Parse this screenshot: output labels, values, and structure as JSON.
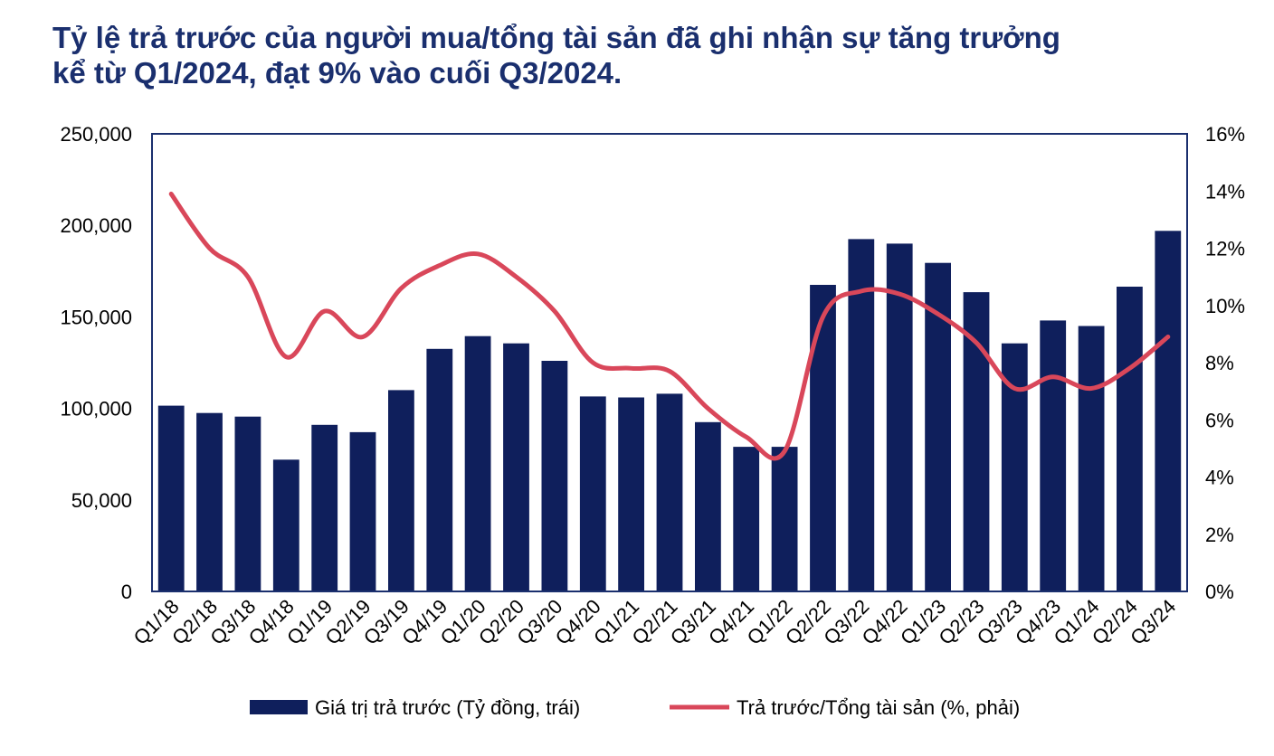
{
  "title_line1": "Tỷ lệ trả trước của người mua/tổng tài sản đã ghi nhận sự tăng trưởng",
  "title_line2": "kể từ Q1/2024, đạt 9% vào cuối Q3/2024.",
  "colors": {
    "bar": "#0f1f5c",
    "line": "#d9475a",
    "title": "#1a2f6e",
    "frame": "#1a2f6e"
  },
  "chart_data": {
    "type": "bar",
    "categories": [
      "Q1/18",
      "Q2/18",
      "Q3/18",
      "Q4/18",
      "Q1/19",
      "Q2/19",
      "Q3/19",
      "Q4/19",
      "Q1/20",
      "Q2/20",
      "Q3/20",
      "Q4/20",
      "Q1/21",
      "Q2/21",
      "Q3/21",
      "Q4/21",
      "Q1/22",
      "Q2/22",
      "Q3/22",
      "Q4/22",
      "Q1/23",
      "Q2/23",
      "Q3/23",
      "Q4/23",
      "Q1/24",
      "Q2/24",
      "Q3/24"
    ],
    "series": [
      {
        "name": "Giá trị trả trước (Tỷ đồng, trái)",
        "type": "bar",
        "axis": "left",
        "values": [
          101500,
          97500,
          95500,
          72000,
          91000,
          87000,
          110000,
          132500,
          139500,
          135500,
          126000,
          106500,
          106000,
          108000,
          92500,
          79000,
          79000,
          167500,
          192500,
          190000,
          179500,
          163500,
          135500,
          148000,
          145000,
          166500,
          197000
        ]
      },
      {
        "name": "Trả trước/Tổng tài sản (%, phải)",
        "type": "line",
        "axis": "right",
        "values": [
          13.9,
          12.0,
          11.0,
          8.2,
          9.8,
          8.9,
          10.6,
          11.4,
          11.8,
          11.0,
          9.8,
          8.0,
          7.8,
          7.7,
          6.4,
          5.4,
          4.9,
          9.6,
          10.5,
          10.4,
          9.7,
          8.7,
          7.1,
          7.5,
          7.1,
          7.8,
          8.9
        ]
      }
    ],
    "y_left": {
      "min": 0,
      "max": 250000,
      "ticks": [
        "0",
        "50,000",
        "100,000",
        "150,000",
        "200,000",
        "250,000"
      ]
    },
    "y_right": {
      "min": 0,
      "max": 16,
      "ticks": [
        "0%",
        "2%",
        "4%",
        "6%",
        "8%",
        "10%",
        "12%",
        "14%",
        "16%"
      ]
    },
    "grid": false,
    "legend_position": "bottom"
  }
}
